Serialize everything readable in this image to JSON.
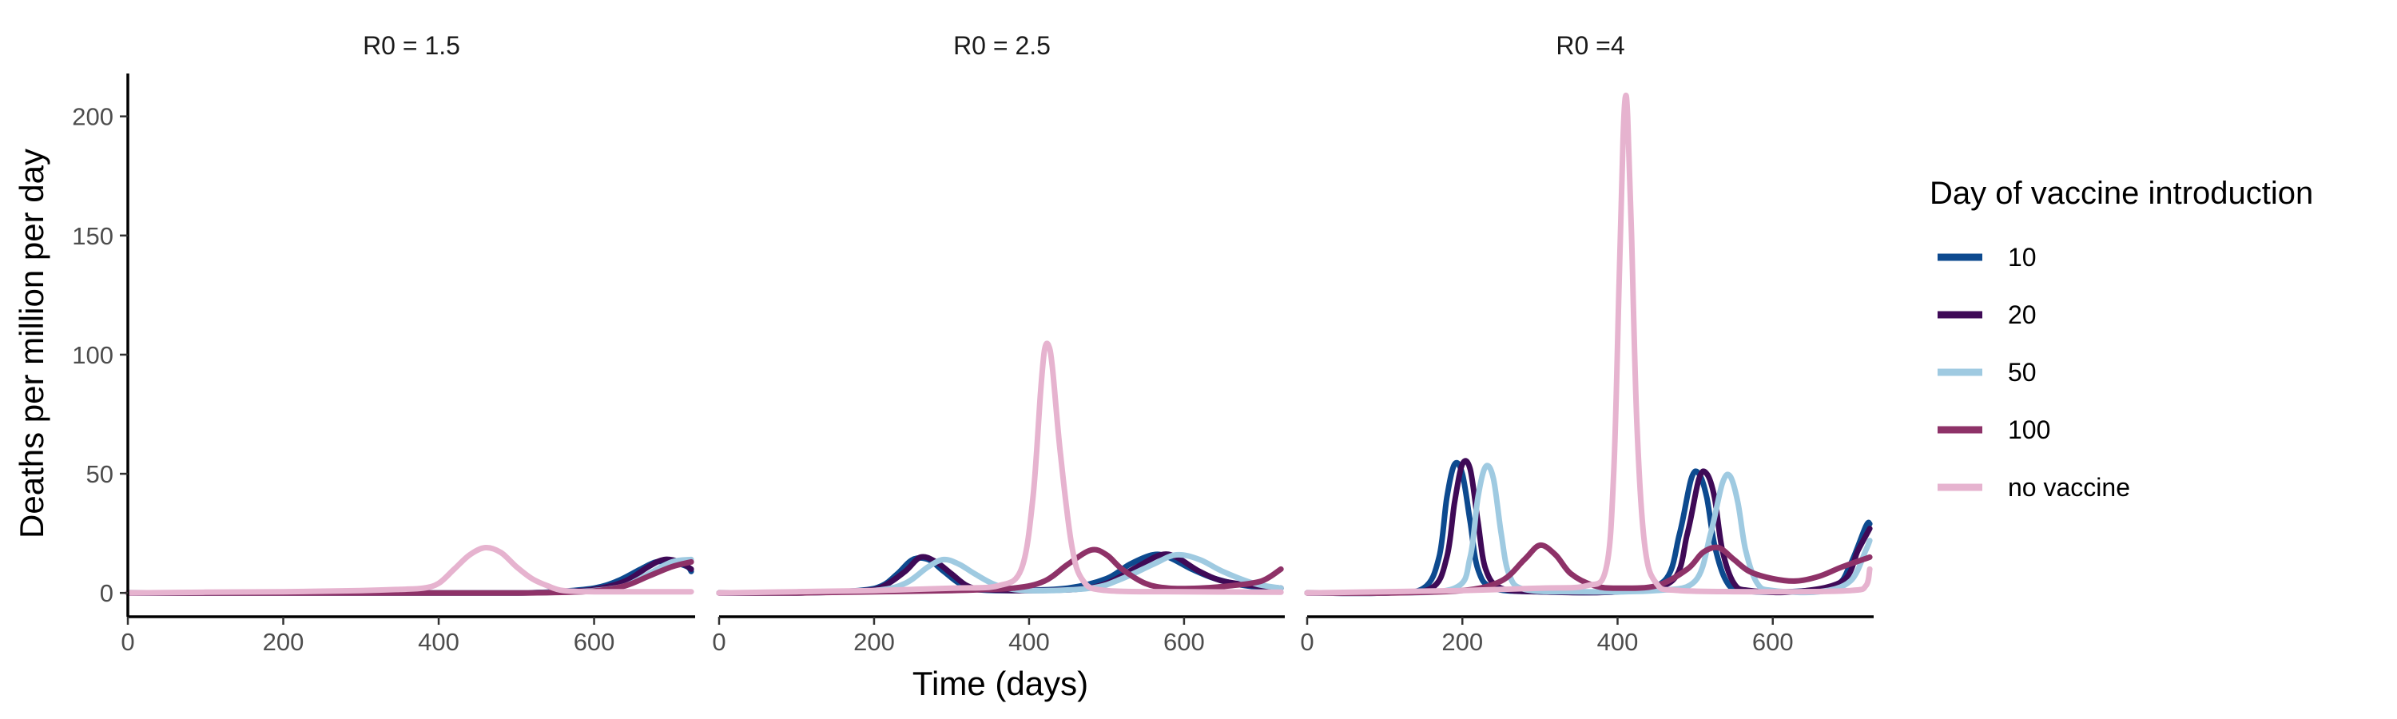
{
  "colors": {
    "10": "#0D4A8F",
    "20": "#3F0A57",
    "50": "#9FCAE1",
    "100": "#8E3268",
    "no vaccine": "#E6B3CF",
    "axis": "#000000",
    "tick_text": "#4d4d4d"
  },
  "chart_data": {
    "type": "line",
    "layout": "facet",
    "xlabel": "Time (days)",
    "ylabel": "Deaths per million per day",
    "xlim": [
      0,
      730
    ],
    "ylim": [
      -10,
      218
    ],
    "x_ticks": [
      0,
      200,
      400,
      600
    ],
    "y_ticks": [
      0,
      50,
      100,
      150,
      200
    ],
    "legend": {
      "title": "Day of vaccine introduction",
      "position": "right",
      "entries": [
        "10",
        "20",
        "50",
        "100",
        "no vaccine"
      ]
    },
    "panels": [
      {
        "strip": "R0 = 1.5",
        "series": [
          {
            "name": "10",
            "x": [
              0,
              100,
              200,
              300,
              400,
              500,
              550,
              600,
              630,
              660,
              680,
              700,
              720,
              725
            ],
            "y": [
              0,
              0,
              0,
              0,
              0,
              0,
              0.5,
              2,
              5,
              10,
              13,
              13,
              11,
              9
            ]
          },
          {
            "name": "20",
            "x": [
              0,
              100,
              200,
              300,
              400,
              500,
              550,
              600,
              640,
              670,
              690,
              710,
              725
            ],
            "y": [
              0,
              0,
              0,
              0,
              0,
              0,
              0.3,
              1.5,
              5,
              11,
              14,
              13,
              10
            ]
          },
          {
            "name": "50",
            "x": [
              0,
              100,
              200,
              300,
              400,
              500,
              560,
              600,
              640,
              670,
              700,
              725
            ],
            "y": [
              0,
              0,
              0,
              0,
              0,
              0,
              0.3,
              1,
              3,
              8,
              13,
              14
            ]
          },
          {
            "name": "100",
            "x": [
              0,
              100,
              200,
              300,
              400,
              500,
              550,
              600,
              640,
              670,
              700,
              725
            ],
            "y": [
              0,
              0,
              0,
              0,
              0,
              0,
              0.2,
              0.8,
              3,
              7,
              11,
              13
            ]
          },
          {
            "name": "no vaccine",
            "x": [
              0,
              100,
              200,
              300,
              350,
              380,
              400,
              420,
              440,
              460,
              480,
              500,
              520,
              540,
              560,
              600,
              700,
              725
            ],
            "y": [
              0,
              0.3,
              0.5,
              1,
              1.5,
              2,
              4,
              10,
              16,
              19,
              17,
              11,
              6,
              3,
              1,
              0.5,
              0.5,
              0.5
            ]
          }
        ]
      },
      {
        "strip": "R0 = 2.5",
        "series": [
          {
            "name": "10",
            "x": [
              0,
              100,
              180,
              210,
              230,
              250,
              270,
              290,
              310,
              330,
              380,
              450,
              500,
              530,
              560,
              580,
              610,
              640,
              680,
              725
            ],
            "y": [
              0,
              0,
              1,
              3,
              8,
              14,
              14,
              9,
              4,
              1.5,
              1,
              2,
              6,
              12,
              16,
              15,
              10,
              6,
              3,
              2
            ]
          },
          {
            "name": "20",
            "x": [
              0,
              100,
              180,
              210,
              240,
              260,
              280,
              300,
              320,
              340,
              380,
              460,
              500,
              540,
              570,
              590,
              620,
              650,
              690,
              725
            ],
            "y": [
              0,
              0,
              0.8,
              2.5,
              9,
              15,
              13,
              8,
              3,
              1.5,
              1,
              1.5,
              4,
              11,
              16,
              15,
              9,
              5,
              3,
              2
            ]
          },
          {
            "name": "50",
            "x": [
              0,
              100,
              200,
              240,
              270,
              290,
              310,
              330,
              360,
              400,
              480,
              520,
              560,
              590,
              620,
              650,
              690,
              725
            ],
            "y": [
              0,
              0,
              1,
              4,
              11,
              14,
              12,
              8,
              3,
              1,
              2,
              6,
              12,
              16,
              14,
              9,
              4,
              2
            ]
          },
          {
            "name": "100",
            "x": [
              0,
              100,
              200,
              300,
              380,
              420,
              450,
              480,
              500,
              520,
              550,
              580,
              620,
              660,
              700,
              725
            ],
            "y": [
              0,
              0,
              0.5,
              1,
              2,
              5,
              12,
              18,
              16,
              10,
              4,
              2,
              2,
              3,
              5,
              10
            ]
          },
          {
            "name": "no vaccine",
            "x": [
              0,
              100,
              200,
              300,
              360,
              390,
              405,
              415,
              420,
              425,
              430,
              440,
              455,
              470,
              500,
              600,
              725
            ],
            "y": [
              0,
              0.5,
              1,
              2,
              3,
              10,
              40,
              85,
              102,
              104,
              95,
              60,
              20,
              5,
              1,
              0.5,
              0.3
            ]
          }
        ]
      },
      {
        "strip": "R0 =4",
        "series": [
          {
            "name": "10",
            "x": [
              0,
              100,
              150,
              170,
              180,
              190,
              200,
              210,
              220,
              240,
              300,
              400,
              460,
              480,
              495,
              505,
              515,
              525,
              540,
              560,
              620,
              680,
              700,
              720,
              725
            ],
            "y": [
              0,
              0,
              2,
              15,
              40,
              54,
              50,
              30,
              10,
              2,
              0.5,
              0.5,
              5,
              25,
              48,
              50,
              40,
              20,
              5,
              1,
              0.5,
              3,
              12,
              28,
              29
            ]
          },
          {
            "name": "20",
            "x": [
              0,
              100,
              160,
              180,
              190,
              200,
              210,
              220,
              230,
              250,
              300,
              400,
              470,
              490,
              505,
              515,
              525,
              535,
              550,
              570,
              630,
              690,
              710,
              725
            ],
            "y": [
              0,
              0,
              2,
              15,
              38,
              54,
              52,
              30,
              10,
              2,
              0.5,
              0.5,
              5,
              25,
              48,
              50,
              40,
              18,
              4,
              1,
              0.5,
              5,
              18,
              27
            ]
          },
          {
            "name": "50",
            "x": [
              0,
              100,
              190,
              210,
              220,
              230,
              240,
              250,
              260,
              280,
              350,
              450,
              500,
              520,
              535,
              545,
              555,
              565,
              580,
              600,
              660,
              700,
              720,
              725
            ],
            "y": [
              0,
              0,
              2,
              15,
              40,
              53,
              48,
              25,
              8,
              1.5,
              0.5,
              1,
              5,
              25,
              46,
              49,
              38,
              18,
              4,
              1,
              0.5,
              5,
              18,
              22
            ]
          },
          {
            "name": "100",
            "x": [
              0,
              100,
              200,
              250,
              280,
              300,
              320,
              340,
              370,
              400,
              450,
              490,
              510,
              530,
              550,
              570,
              600,
              630,
              660,
              690,
              725
            ],
            "y": [
              0,
              0,
              1,
              5,
              14,
              20,
              16,
              8,
              3,
              2,
              3,
              10,
              17,
              19,
              14,
              9,
              6,
              5,
              7,
              11,
              15
            ]
          },
          {
            "name": "no vaccine",
            "x": [
              0,
              100,
              200,
              300,
              360,
              385,
              395,
              402,
              407,
              410,
              413,
              418,
              425,
              435,
              450,
              480,
              600,
              700,
              720,
              725
            ],
            "y": [
              0,
              0.5,
              1,
              2,
              3,
              10,
              50,
              130,
              190,
              208,
              200,
              150,
              70,
              20,
              4,
              1,
              0.5,
              1,
              3,
              10
            ]
          }
        ]
      }
    ]
  }
}
